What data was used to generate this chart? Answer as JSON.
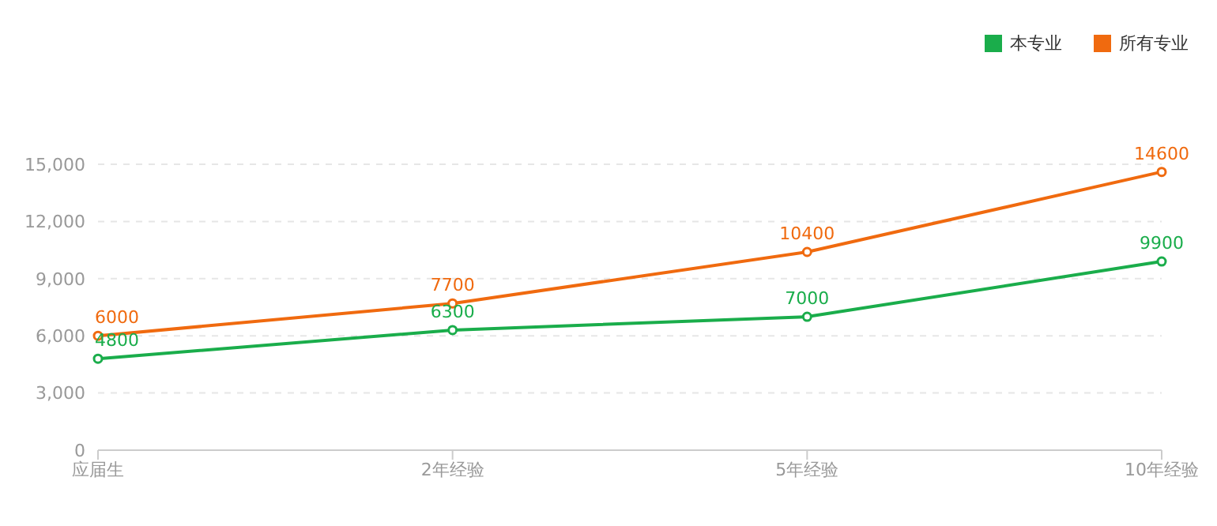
{
  "chart_data": {
    "type": "line",
    "categories": [
      "应届生",
      "2年经验",
      "5年经验",
      "10年经验"
    ],
    "series": [
      {
        "name": "本专业",
        "color": "#1aad4b",
        "values": [
          4800,
          6300,
          7000,
          9900
        ]
      },
      {
        "name": "所有专业",
        "color": "#f06a0f",
        "values": [
          6000,
          7700,
          10400,
          14600
        ]
      }
    ],
    "ylim": [
      0,
      15000
    ],
    "yticks": [
      0,
      {
        "value": 3000,
        "label": "3,000"
      },
      {
        "value": 6000,
        "label": "6,000"
      },
      {
        "value": 9000,
        "label": "9,000"
      },
      {
        "value": 12000,
        "label": "12,000"
      },
      {
        "value": 15000,
        "label": "15,000"
      }
    ],
    "grid": "y",
    "legend": "top right",
    "marker": "circle",
    "line_style": "solid",
    "data_labels": true
  }
}
